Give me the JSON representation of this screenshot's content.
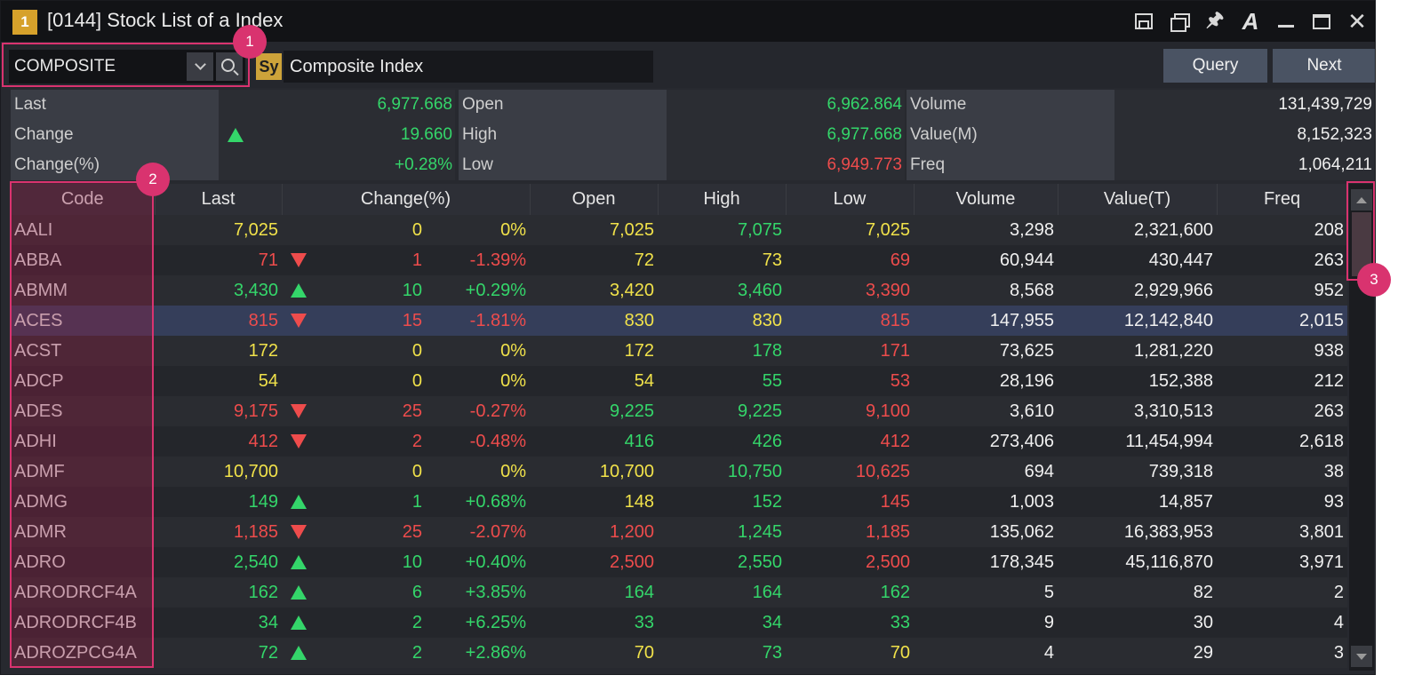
{
  "window": {
    "badge": "1",
    "title": "[0144] Stock List of a Index",
    "icons": [
      "restore-icon",
      "cascade-icon",
      "pin-icon",
      "font-icon",
      "minimize-icon",
      "maximize-icon",
      "close-icon"
    ]
  },
  "toolbar": {
    "symbol_value": "COMPOSITE",
    "sy_badge": "Sy",
    "name_value": "Composite Index",
    "query_label": "Query",
    "next_label": "Next"
  },
  "summary": {
    "rows": [
      [
        {
          "label": "Last",
          "value": "6,977.668",
          "color": "up"
        },
        {
          "label": "Open",
          "value": "6,962.864",
          "color": "up"
        },
        {
          "label": "Volume",
          "value": "131,439,729",
          "color": "white"
        }
      ],
      [
        {
          "label": "Change",
          "value": "19.660",
          "color": "up",
          "arrow": "up"
        },
        {
          "label": "High",
          "value": "6,977.668",
          "color": "up"
        },
        {
          "label": "Value(M)",
          "value": "8,152,323",
          "color": "white"
        }
      ],
      [
        {
          "label": "Change(%)",
          "value": "+0.28%",
          "color": "up"
        },
        {
          "label": "Low",
          "value": "6,949.773",
          "color": "down"
        },
        {
          "label": "Freq",
          "value": "1,064,211",
          "color": "white"
        }
      ]
    ]
  },
  "table": {
    "headers": [
      "Code",
      "Last",
      "Change(%)",
      "Open",
      "High",
      "Low",
      "Volume",
      "Value(T)",
      "Freq"
    ],
    "rows": [
      {
        "code": "AALI",
        "last": "7,025",
        "dir": "flat",
        "chg": "0",
        "pct": "0%",
        "open": "7,025",
        "open_c": "flat",
        "high": "7,075",
        "high_c": "up",
        "low": "7,025",
        "low_c": "flat",
        "volume": "3,298",
        "value": "2,321,600",
        "freq": "208"
      },
      {
        "code": "ABBA",
        "last": "71",
        "dir": "down",
        "chg": "1",
        "pct": "-1.39%",
        "open": "72",
        "open_c": "flat",
        "high": "73",
        "high_c": "flat",
        "low": "69",
        "low_c": "down",
        "volume": "60,944",
        "value": "430,447",
        "freq": "263"
      },
      {
        "code": "ABMM",
        "last": "3,430",
        "dir": "up",
        "chg": "10",
        "pct": "+0.29%",
        "open": "3,420",
        "open_c": "flat",
        "high": "3,460",
        "high_c": "up",
        "low": "3,390",
        "low_c": "down",
        "volume": "8,568",
        "value": "2,929,966",
        "freq": "952"
      },
      {
        "code": "ACES",
        "last": "815",
        "dir": "down",
        "chg": "15",
        "pct": "-1.81%",
        "open": "830",
        "open_c": "flat",
        "high": "830",
        "high_c": "flat",
        "low": "815",
        "low_c": "down",
        "volume": "147,955",
        "value": "12,142,840",
        "freq": "2,015",
        "selected": true
      },
      {
        "code": "ACST",
        "last": "172",
        "dir": "flat",
        "chg": "0",
        "pct": "0%",
        "open": "172",
        "open_c": "flat",
        "high": "178",
        "high_c": "up",
        "low": "171",
        "low_c": "down",
        "volume": "73,625",
        "value": "1,281,220",
        "freq": "938"
      },
      {
        "code": "ADCP",
        "last": "54",
        "dir": "flat",
        "chg": "0",
        "pct": "0%",
        "open": "54",
        "open_c": "flat",
        "high": "55",
        "high_c": "up",
        "low": "53",
        "low_c": "down",
        "volume": "28,196",
        "value": "152,388",
        "freq": "212"
      },
      {
        "code": "ADES",
        "last": "9,175",
        "dir": "down",
        "chg": "25",
        "pct": "-0.27%",
        "open": "9,225",
        "open_c": "up",
        "high": "9,225",
        "high_c": "up",
        "low": "9,100",
        "low_c": "down",
        "volume": "3,610",
        "value": "3,310,513",
        "freq": "263"
      },
      {
        "code": "ADHI",
        "last": "412",
        "dir": "down",
        "chg": "2",
        "pct": "-0.48%",
        "open": "416",
        "open_c": "up",
        "high": "426",
        "high_c": "up",
        "low": "412",
        "low_c": "down",
        "volume": "273,406",
        "value": "11,454,994",
        "freq": "2,618"
      },
      {
        "code": "ADMF",
        "last": "10,700",
        "dir": "flat",
        "chg": "0",
        "pct": "0%",
        "open": "10,700",
        "open_c": "flat",
        "high": "10,750",
        "high_c": "up",
        "low": "10,625",
        "low_c": "down",
        "volume": "694",
        "value": "739,318",
        "freq": "38"
      },
      {
        "code": "ADMG",
        "last": "149",
        "dir": "up",
        "chg": "1",
        "pct": "+0.68%",
        "open": "148",
        "open_c": "flat",
        "high": "152",
        "high_c": "up",
        "low": "145",
        "low_c": "down",
        "volume": "1,003",
        "value": "14,857",
        "freq": "93"
      },
      {
        "code": "ADMR",
        "last": "1,185",
        "dir": "down",
        "chg": "25",
        "pct": "-2.07%",
        "open": "1,200",
        "open_c": "down",
        "high": "1,245",
        "high_c": "up",
        "low": "1,185",
        "low_c": "down",
        "volume": "135,062",
        "value": "16,383,953",
        "freq": "3,801"
      },
      {
        "code": "ADRO",
        "last": "2,540",
        "dir": "up",
        "chg": "10",
        "pct": "+0.40%",
        "open": "2,500",
        "open_c": "down",
        "high": "2,550",
        "high_c": "up",
        "low": "2,500",
        "low_c": "down",
        "volume": "178,345",
        "value": "45,116,870",
        "freq": "3,971"
      },
      {
        "code": "ADRODRCF4A",
        "last": "162",
        "dir": "up",
        "chg": "6",
        "pct": "+3.85%",
        "open": "164",
        "open_c": "up",
        "high": "164",
        "high_c": "up",
        "low": "162",
        "low_c": "up",
        "volume": "5",
        "value": "82",
        "freq": "2"
      },
      {
        "code": "ADRODRCF4B",
        "last": "34",
        "dir": "up",
        "chg": "2",
        "pct": "+6.25%",
        "open": "33",
        "open_c": "up",
        "high": "34",
        "high_c": "up",
        "low": "33",
        "low_c": "up",
        "volume": "9",
        "value": "30",
        "freq": "4"
      },
      {
        "code": "ADROZPCG4A",
        "last": "72",
        "dir": "up",
        "chg": "2",
        "pct": "+2.86%",
        "open": "70",
        "open_c": "flat",
        "high": "73",
        "high_c": "up",
        "low": "70",
        "low_c": "flat",
        "volume": "4",
        "value": "29",
        "freq": "3"
      }
    ]
  },
  "annotations": [
    "1",
    "2",
    "3"
  ],
  "colors": {
    "accent": "#d9336f",
    "up": "#34d66a",
    "down": "#ee4c4c",
    "flat": "#f1e24a"
  }
}
